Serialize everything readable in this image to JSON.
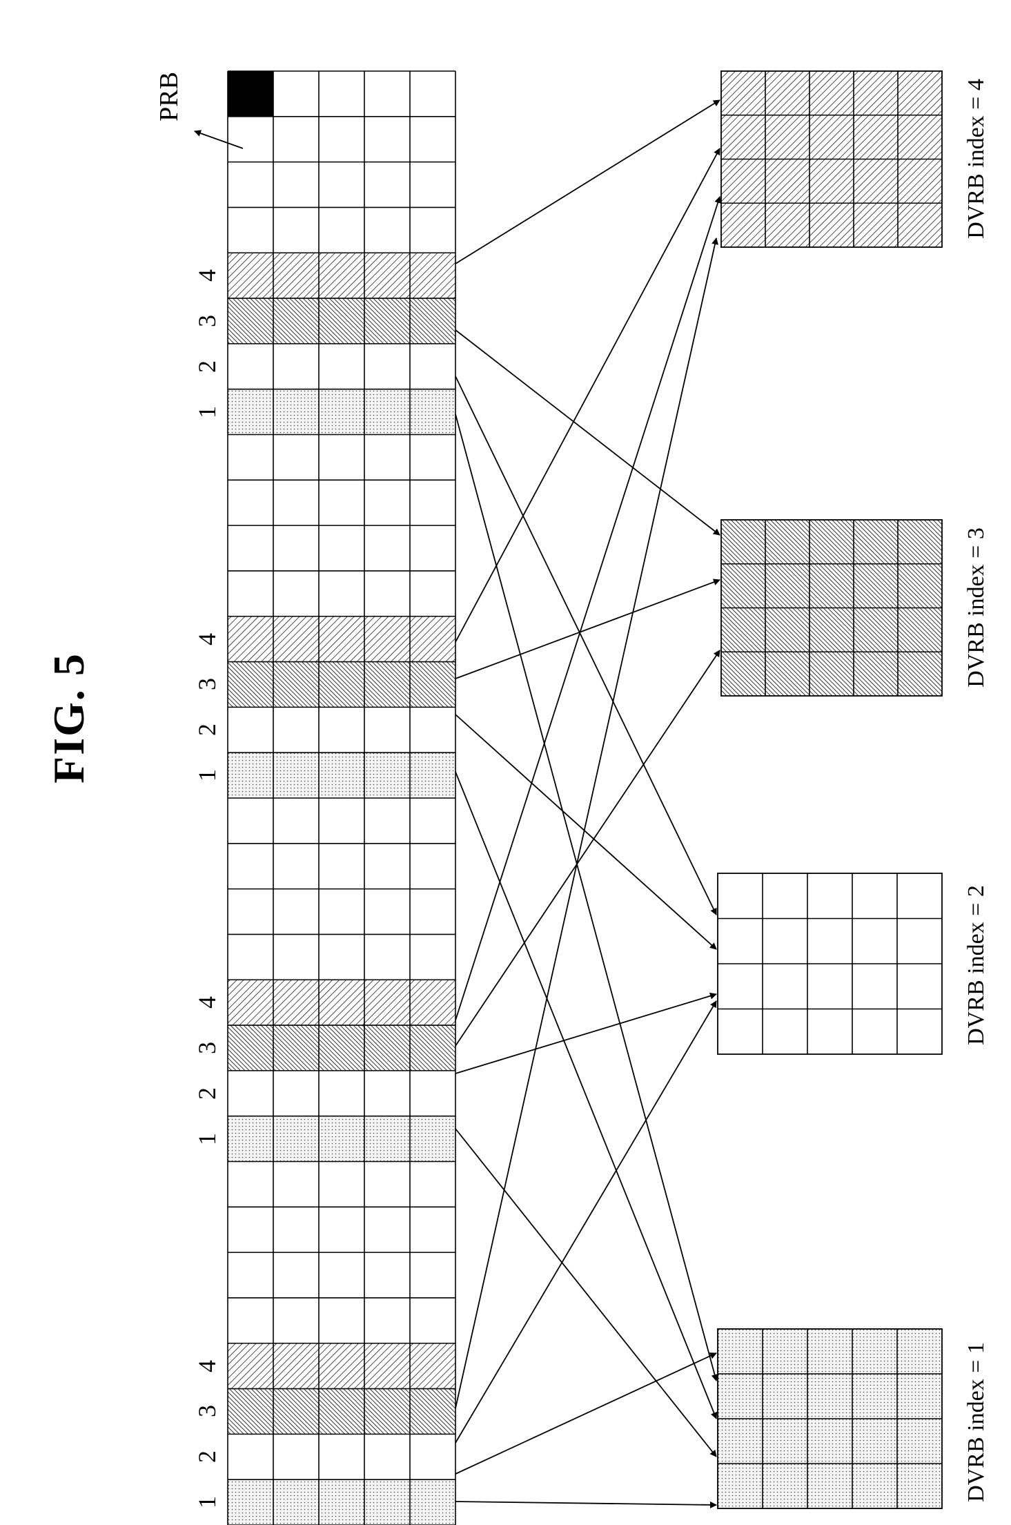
{
  "figure": {
    "title": "FIG. 5",
    "prb_label": "PRB",
    "row_numbers": [
      "1",
      "2",
      "3",
      "4"
    ],
    "dvrb_labels": [
      "DVRB index = 1",
      "DVRB index = 2",
      "DVRB index = 3",
      "DVRB index = 4"
    ],
    "colors": {
      "line": "#000000",
      "background": "#ffffff",
      "highlight_cell": "#000000"
    },
    "prb_grid": {
      "rows": 32,
      "cols": 5,
      "row_patterns": [
        "dots",
        "blank",
        "back",
        "fwd",
        "blank",
        "blank",
        "blank",
        "blank",
        "dots",
        "blank",
        "back",
        "fwd",
        "blank",
        "blank",
        "blank",
        "blank",
        "dots",
        "blank",
        "back",
        "fwd",
        "blank",
        "blank",
        "blank",
        "blank",
        "dots",
        "blank",
        "back",
        "fwd",
        "blank",
        "blank",
        "blank",
        "blank"
      ]
    },
    "dvrb_patterns": [
      "dots",
      "blank",
      "back",
      "fwd"
    ]
  }
}
